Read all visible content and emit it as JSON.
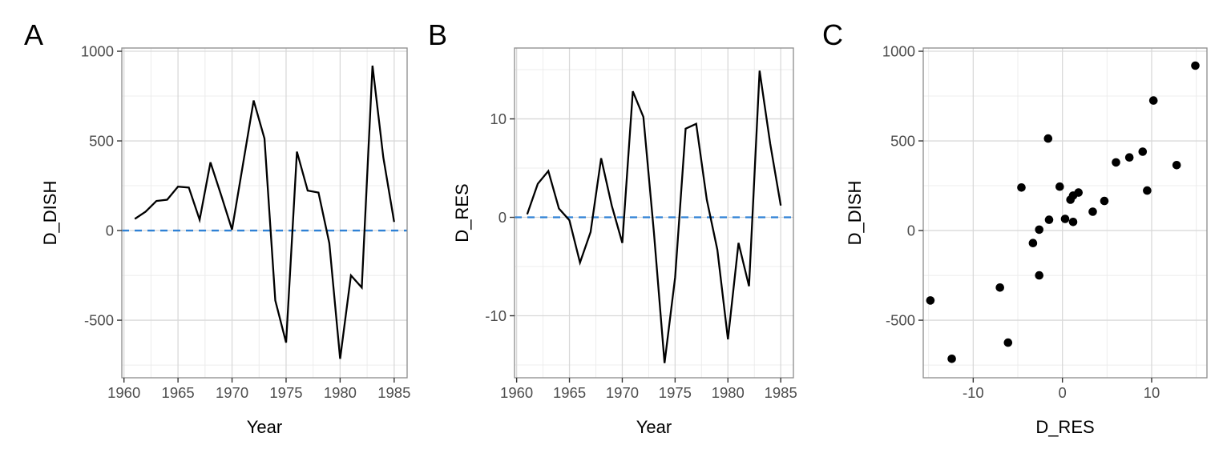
{
  "figure": {
    "description": "Three-panel statistical figure: first differences of DISH and RES series over time and their scatter relationship",
    "background": "#ffffff"
  },
  "style": {
    "accent_blue": "#2f81d5",
    "line_color": "#000000",
    "point_color": "#000000",
    "grid_major": "#d9d9d9",
    "grid_minor": "#ececec",
    "border": "#8c8c8c",
    "tick_color": "#333333",
    "tick_label_color": "#4d4d4d",
    "text_color": "#000000",
    "background": "#ffffff"
  },
  "chart_data": {
    "series": {
      "year": [
        1961,
        1962,
        1963,
        1964,
        1965,
        1966,
        1967,
        1968,
        1969,
        1970,
        1971,
        1972,
        1973,
        1974,
        1975,
        1976,
        1977,
        1978,
        1979,
        1980,
        1981,
        1982,
        1983,
        1984,
        1985
      ],
      "d_dish": [
        65,
        105,
        165,
        172,
        245,
        240,
        60,
        380,
        195,
        5,
        365,
        725,
        513,
        -390,
        -625,
        440,
        223,
        212,
        -70,
        -715,
        -250,
        -318,
        920,
        408,
        48
      ],
      "d_res": [
        0.3,
        3.4,
        4.7,
        0.9,
        -0.3,
        -4.6,
        -1.5,
        6.0,
        1.2,
        -2.6,
        12.8,
        10.2,
        -1.6,
        -14.8,
        -6.1,
        9.0,
        9.5,
        1.8,
        -3.3,
        -12.4,
        -2.6,
        -7.0,
        14.9,
        7.5,
        1.2
      ]
    },
    "panels": [
      {
        "id": "A",
        "label": "A",
        "type": "line",
        "title": "",
        "xlabel": "Year",
        "ylabel": "D_DISH",
        "x_key": "year",
        "y_key": "d_dish",
        "xlim": [
          1959.8,
          1986.2
        ],
        "ylim": [
          -821,
          1018
        ],
        "x_ticks": {
          "values": [
            1960,
            1965,
            1970,
            1975,
            1980,
            1985
          ],
          "labels": [
            "1960",
            "1965",
            "1970",
            "1975",
            "1980",
            "1985"
          ]
        },
        "y_ticks": {
          "values": [
            -500,
            0,
            500,
            1000
          ],
          "labels": [
            "-500",
            "0",
            "500",
            "1000"
          ]
        },
        "x_minor": [
          1962.5,
          1967.5,
          1972.5,
          1977.5,
          1982.5
        ],
        "y_minor": [
          -750,
          -250,
          250,
          750
        ],
        "ref_line": 0,
        "grid": true,
        "legend": "none"
      },
      {
        "id": "B",
        "label": "B",
        "type": "line",
        "title": "",
        "xlabel": "Year",
        "ylabel": "D_RES",
        "x_key": "year",
        "y_key": "d_res",
        "xlim": [
          1959.8,
          1986.2
        ],
        "ylim": [
          -16.3,
          17.2
        ],
        "x_ticks": {
          "values": [
            1960,
            1965,
            1970,
            1975,
            1980,
            1985
          ],
          "labels": [
            "1960",
            "1965",
            "1970",
            "1975",
            "1980",
            "1985"
          ]
        },
        "y_ticks": {
          "values": [
            -10,
            0,
            10
          ],
          "labels": [
            "-10",
            "0",
            "10"
          ]
        },
        "x_minor": [
          1962.5,
          1967.5,
          1972.5,
          1977.5,
          1982.5
        ],
        "y_minor": [
          -15,
          -5,
          5,
          15
        ],
        "ref_line": 0,
        "grid": true,
        "legend": "none"
      },
      {
        "id": "C",
        "label": "C",
        "type": "scatter",
        "title": "",
        "xlabel": "D_RES",
        "ylabel": "D_DISH",
        "x_key": "d_res",
        "y_key": "d_dish",
        "xlim": [
          -15.6,
          16.2
        ],
        "ylim": [
          -821,
          1018
        ],
        "x_ticks": {
          "values": [
            -10,
            0,
            10
          ],
          "labels": [
            "-10",
            "0",
            "10"
          ]
        },
        "y_ticks": {
          "values": [
            -500,
            0,
            500,
            1000
          ],
          "labels": [
            "-500",
            "0",
            "500",
            "1000"
          ]
        },
        "x_minor": [
          -15,
          -5,
          5,
          15
        ],
        "y_minor": [
          -750,
          -250,
          250,
          750
        ],
        "ref_line": null,
        "grid": true,
        "legend": "none"
      }
    ]
  }
}
